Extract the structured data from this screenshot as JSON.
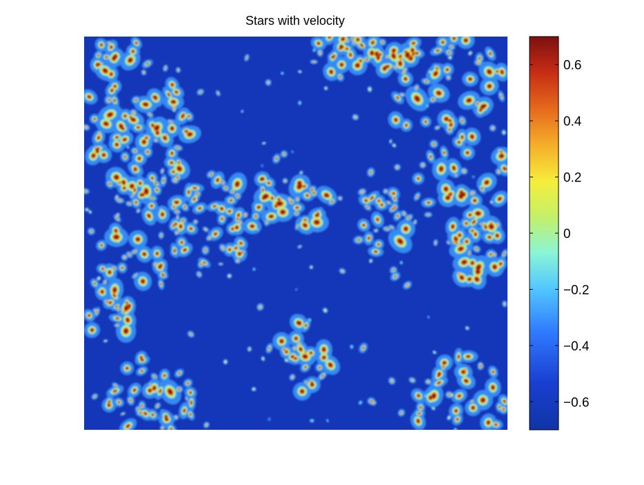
{
  "window": {
    "title": "Stars with velocity"
  },
  "chart_data": {
    "type": "heatmap",
    "title": "Stars with velocity",
    "xlabel": "",
    "ylabel": "",
    "x_axis": "hidden",
    "y_axis": "hidden",
    "colormap": "jet",
    "colorbar": {
      "position": "right",
      "range": [
        -0.7,
        0.7
      ],
      "ticks": [
        0.6,
        0.4,
        0.2,
        0,
        -0.2,
        -0.4,
        -0.6
      ],
      "tick_labels": [
        "0.6",
        "0.4",
        "0.2",
        "0",
        "−0.2",
        "−0.4",
        "−0.6"
      ]
    },
    "value_range": [
      -0.7,
      0.7
    ],
    "background_value": -0.65,
    "grid": false,
    "description_of_field": "filled contour map; mostly low values (blue) with clustered high-value (red) patches concentrated near the four corners and in a diagonal band through the centre-left"
  }
}
